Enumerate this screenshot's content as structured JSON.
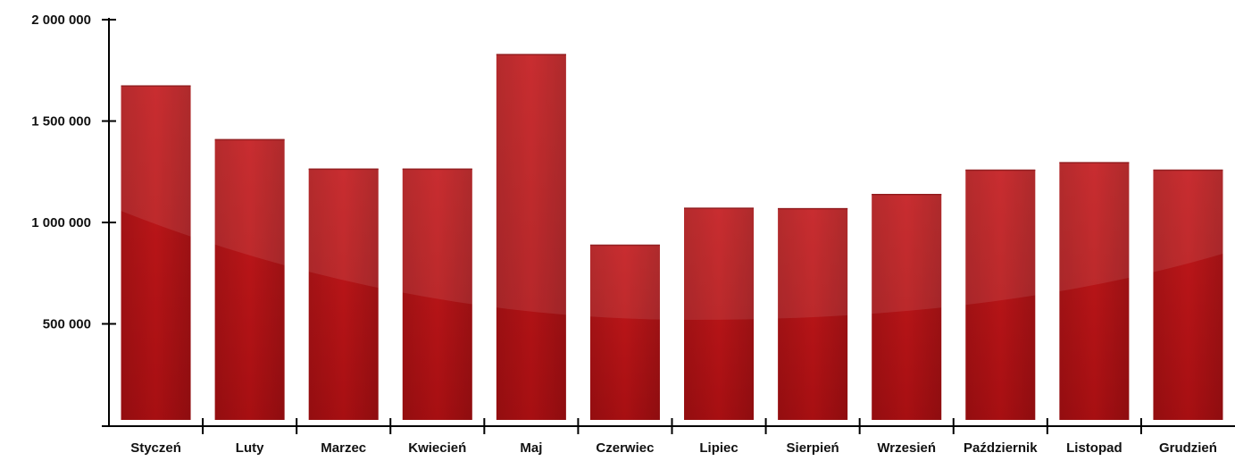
{
  "chart_data": {
    "type": "bar",
    "title": "",
    "xlabel": "",
    "ylabel": "",
    "categories": [
      "Styczeń",
      "Luty",
      "Marzec",
      "Kwiecień",
      "Maj",
      "Czerwiec",
      "Lipiec",
      "Sierpień",
      "Wrzesień",
      "Październik",
      "Listopad",
      "Grudzień"
    ],
    "values": [
      1675000,
      1410000,
      1265000,
      1265000,
      1830000,
      890000,
      1072000,
      1070000,
      1140000,
      1260000,
      1297000,
      1260000
    ],
    "ylim": [
      0,
      2000000
    ],
    "yticks": [
      500000,
      1000000,
      1500000,
      2000000
    ],
    "ytick_labels": [
      "500 000",
      "1 000 000",
      "1 500 000",
      "2 000 000"
    ],
    "grid": false,
    "legend": "none",
    "bar_color": "#c0161a",
    "bar_color_dark": "#a80d12"
  }
}
